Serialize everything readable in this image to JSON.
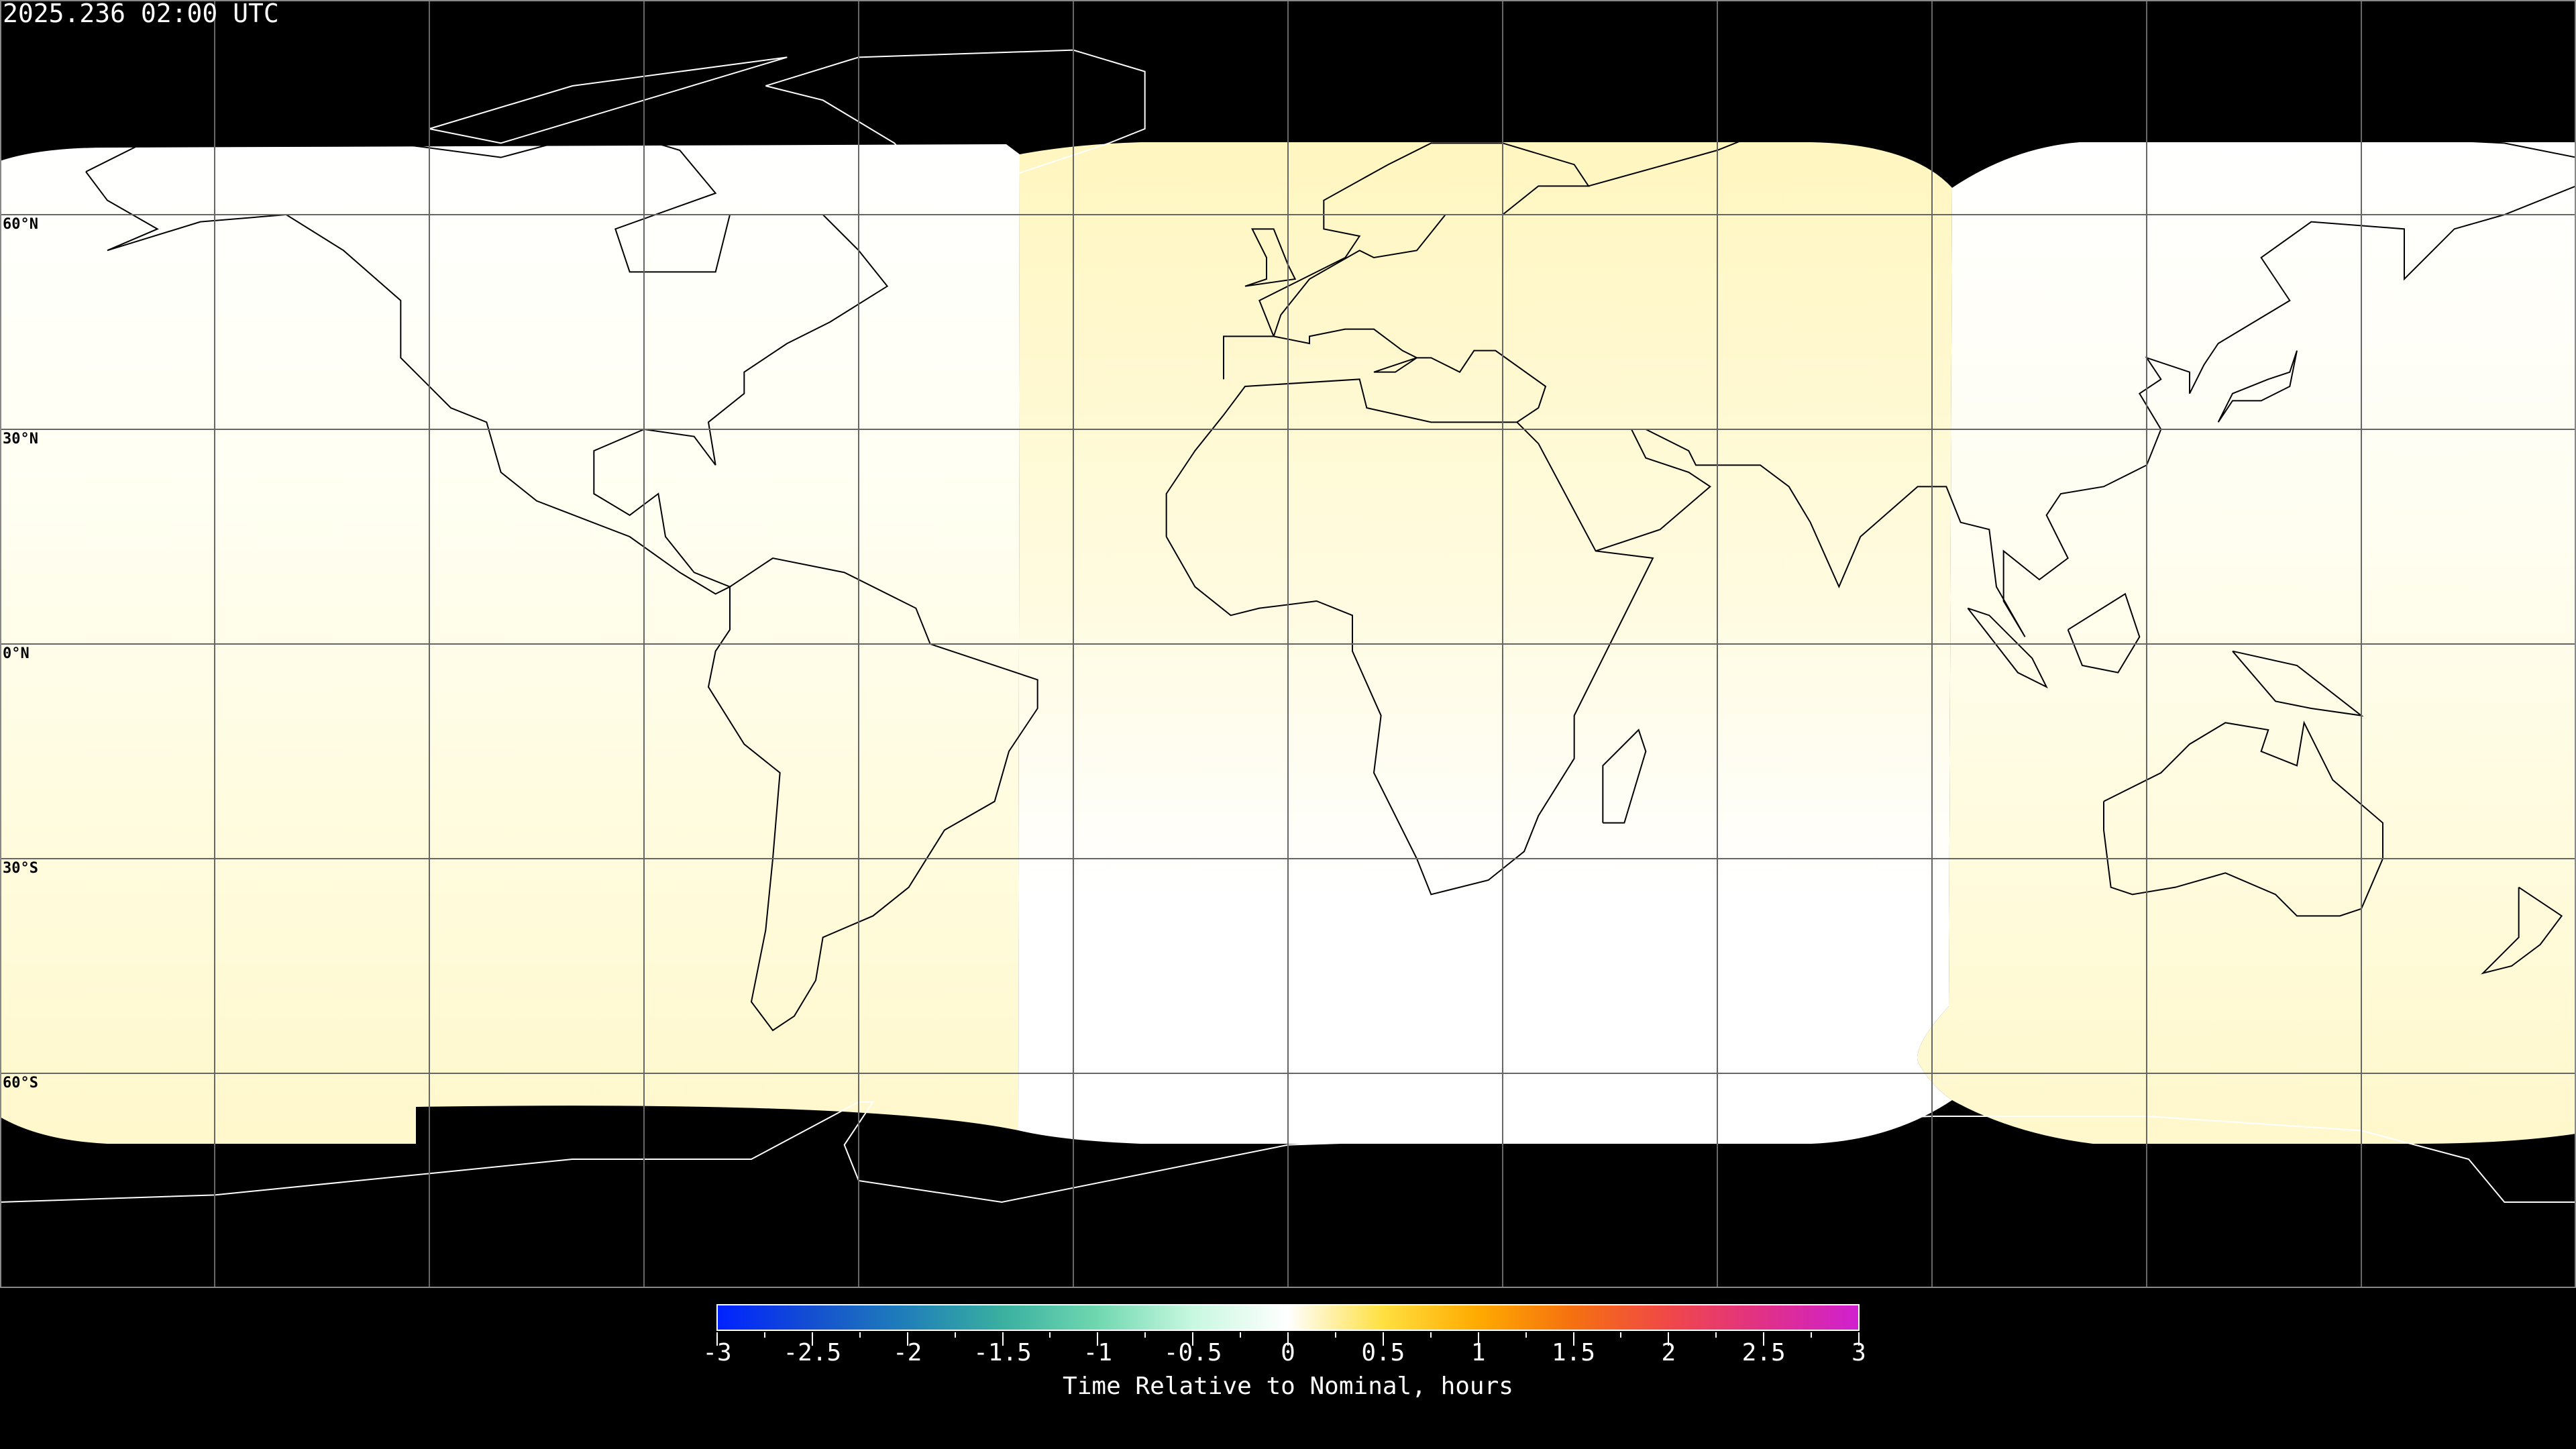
{
  "title": "2025.236 02:00 UTC",
  "map": {
    "projection": "equirectangular",
    "lon_range": [
      -180,
      180
    ],
    "lat_range": [
      -90,
      90
    ],
    "gridlines": {
      "lon_step": 30,
      "lat_step": 30
    },
    "lat_labels": [
      {
        "lat": 60,
        "text": "60°N"
      },
      {
        "lat": 30,
        "text": "30°N"
      },
      {
        "lat": 0,
        "text": "0°N"
      },
      {
        "lat": -30,
        "text": "30°S"
      },
      {
        "lat": -60,
        "text": "60°S"
      }
    ],
    "background_color": "#000000",
    "coastline_color": "#000000"
  },
  "colorbar": {
    "title": "Time Relative to Nominal, hours",
    "range": [
      -3,
      3
    ],
    "tick_labels": [
      "-3",
      "-2.5",
      "-2",
      "-1.5",
      "-1",
      "-0.5",
      "0",
      "0.5",
      "1",
      "1.5",
      "2",
      "2.5",
      "3"
    ],
    "colors": [
      "#0022ff",
      "#1450d0",
      "#2080b8",
      "#3ab0a0",
      "#70d8b0",
      "#c8f8e0",
      "#ffffff",
      "#ffe040",
      "#ffaa00",
      "#f57010",
      "#f04848",
      "#e03088",
      "#d020d0"
    ]
  }
}
